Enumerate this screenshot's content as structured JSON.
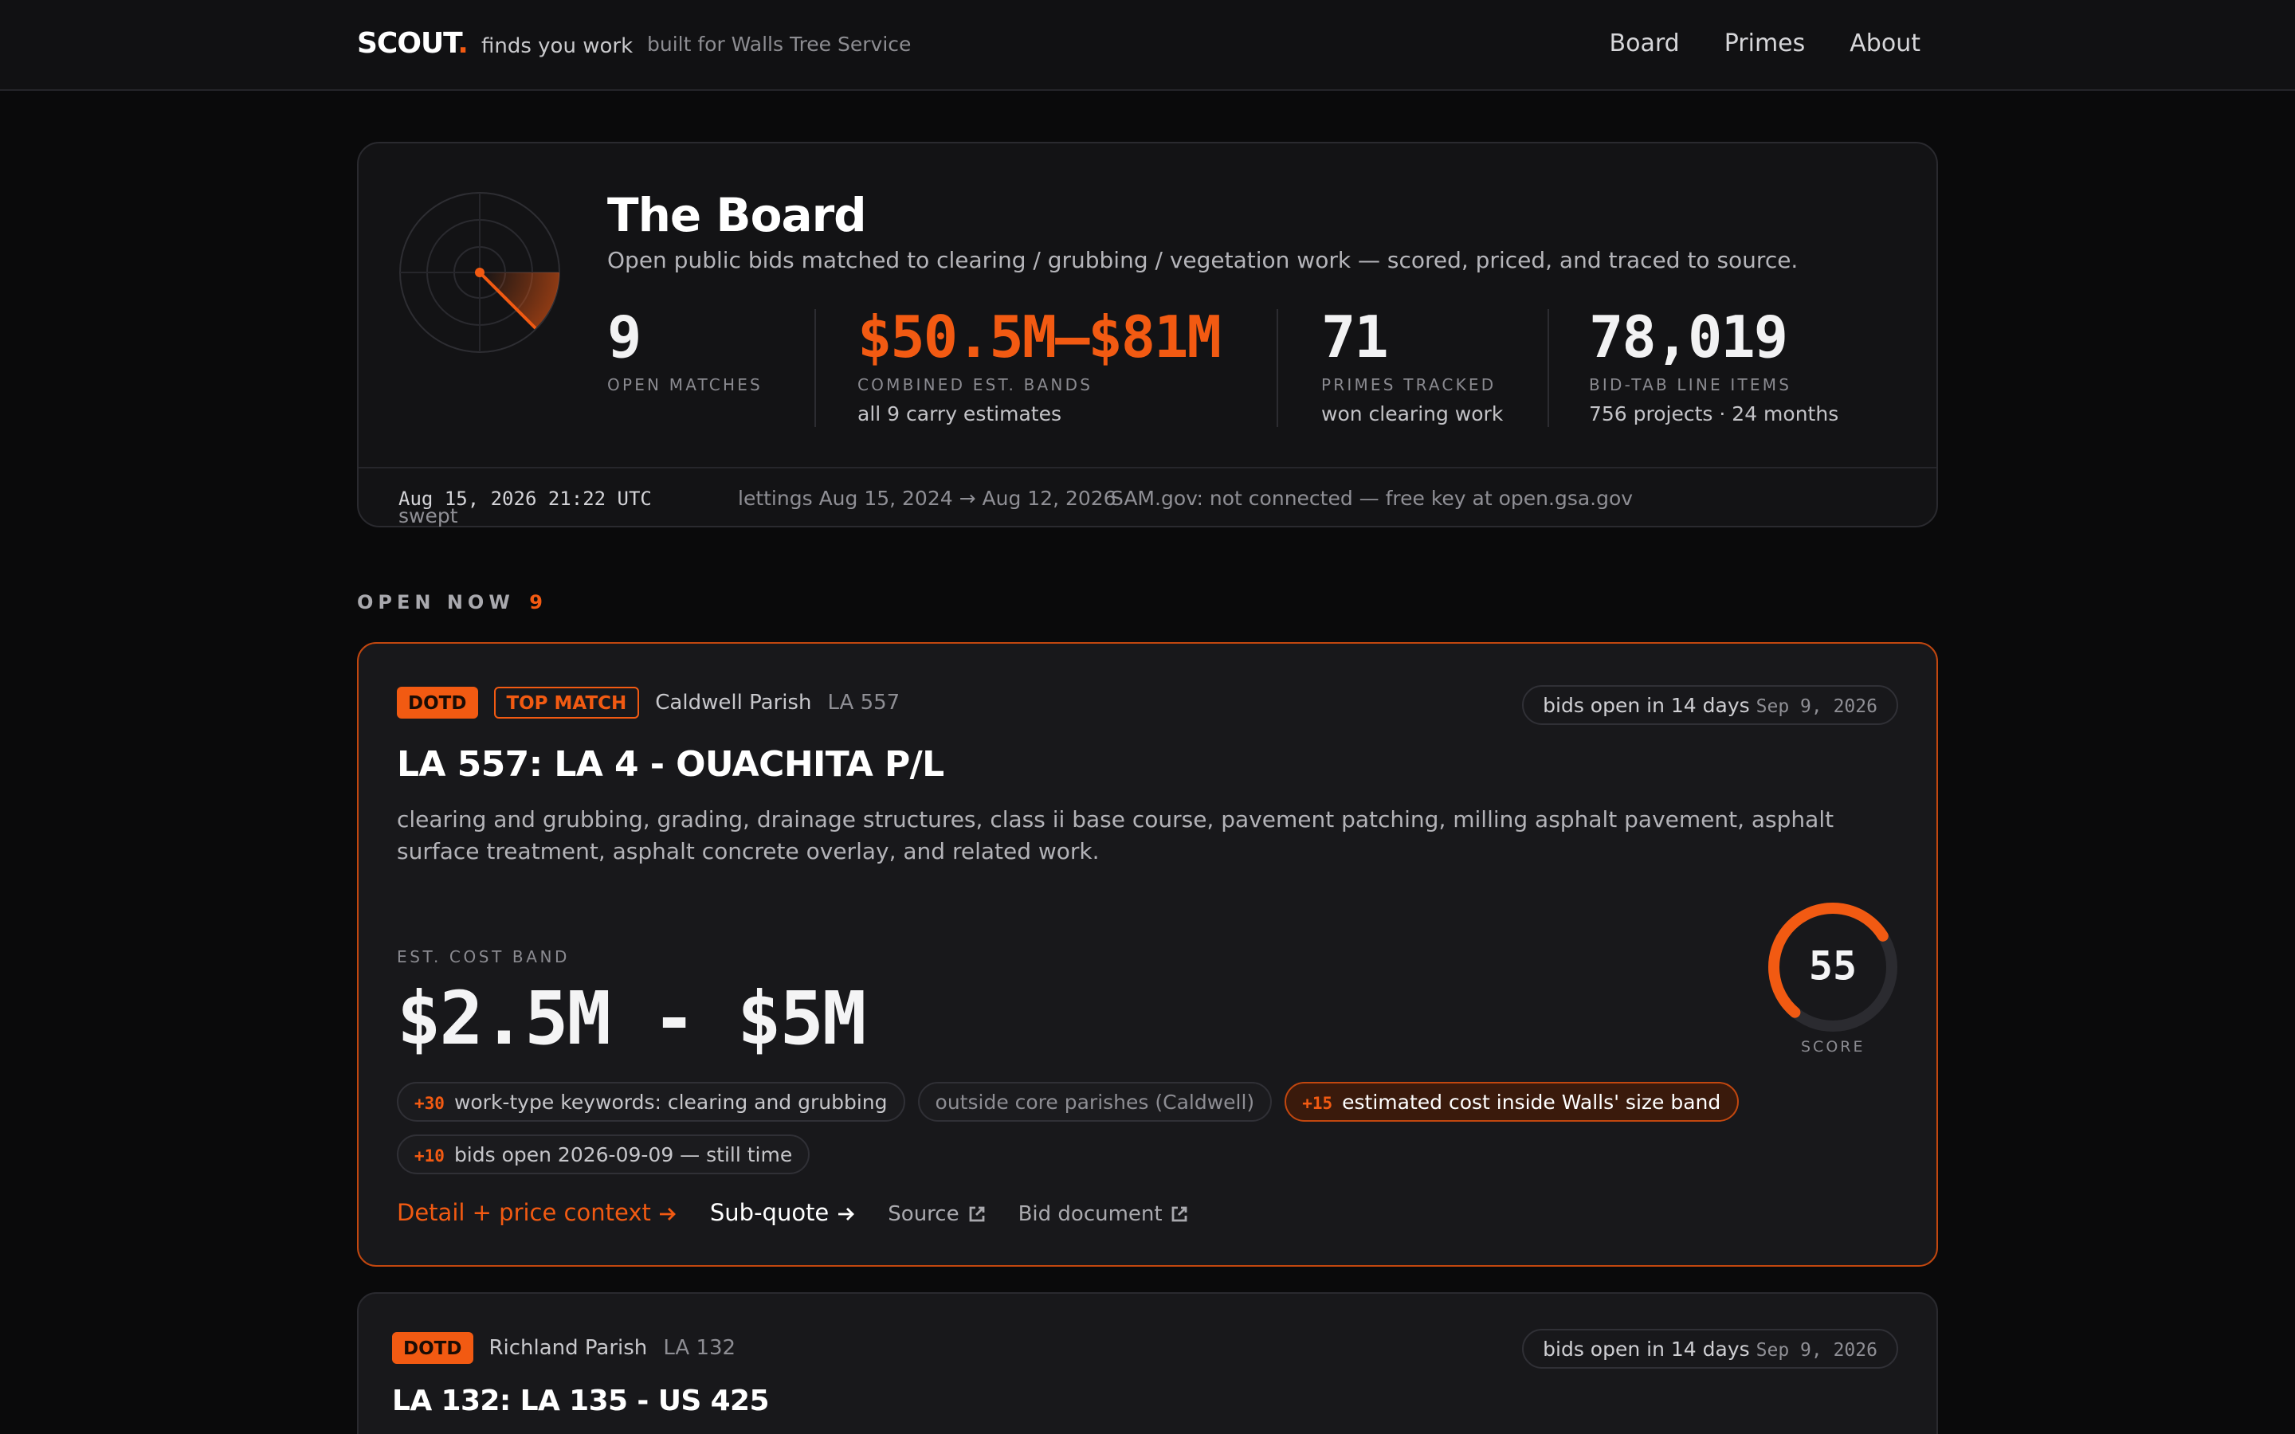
{
  "nav": {
    "brand": "SCOUT",
    "brand_dot": ".",
    "tagline": "finds you work",
    "built_for": "built for Walls Tree Service",
    "links": [
      "Board",
      "Primes",
      "About"
    ]
  },
  "hero": {
    "title": "The Board",
    "subtitle": "Open public bids matched to clearing / grubbing / vegetation work — scored, priced, and traced to source.",
    "stats": [
      {
        "value": "9",
        "label": "OPEN MATCHES"
      },
      {
        "value": "$50.5M–$81M",
        "label": "COMBINED EST. BANDS",
        "note": "all 9 carry estimates",
        "accent": true
      },
      {
        "value": "71",
        "label": "PRIMES TRACKED",
        "note": "won clearing work"
      },
      {
        "value": "78,019",
        "label": "BID-TAB LINE ITEMS",
        "note": "756 projects · 24 months"
      }
    ],
    "meta": {
      "swept_label": "swept",
      "swept": "Aug 15, 2026 21:22 UTC",
      "lettings": "lettings Aug 15, 2024 → Aug 12, 2026",
      "sam": "SAM.gov: not connected — free key at open.gsa.gov"
    }
  },
  "section": {
    "title": "OPEN NOW",
    "count": "9"
  },
  "bids": [
    {
      "agency": "DOTD",
      "badge": "TOP MATCH",
      "parish": "Caldwell Parish",
      "route": "LA 557",
      "opens": "bids open in 14 days",
      "date": "Sep 9, 2026",
      "title": "LA 557: LA 4 - OUACHITA P/L",
      "description": "clearing and grubbing, grading, drainage structures, class ii base course, pavement patching, milling asphalt pavement, asphalt surface treatment, asphalt concrete overlay, and related work.",
      "cost_label": "EST. COST BAND",
      "cost": "$2.5M - $5M",
      "score": 55,
      "score_label": "SCORE",
      "reasons": [
        {
          "points": "+30",
          "text": "work-type keywords: clearing and grubbing"
        },
        {
          "text": "outside core parishes (Caldwell)"
        },
        {
          "points": "+15",
          "text": "estimated cost inside Walls' size band",
          "highlight": true
        },
        {
          "points": "+10",
          "text": "bids open 2026-09-09 — still time"
        }
      ],
      "links": [
        "Detail + price context",
        "Sub-quote",
        "Source",
        "Bid document"
      ]
    },
    {
      "agency": "DOTD",
      "parish": "Richland Parish",
      "route": "LA 132",
      "opens": "bids open in 14 days",
      "date": "Sep 9, 2026",
      "title": "LA 132: LA 135 - US 425"
    }
  ]
}
